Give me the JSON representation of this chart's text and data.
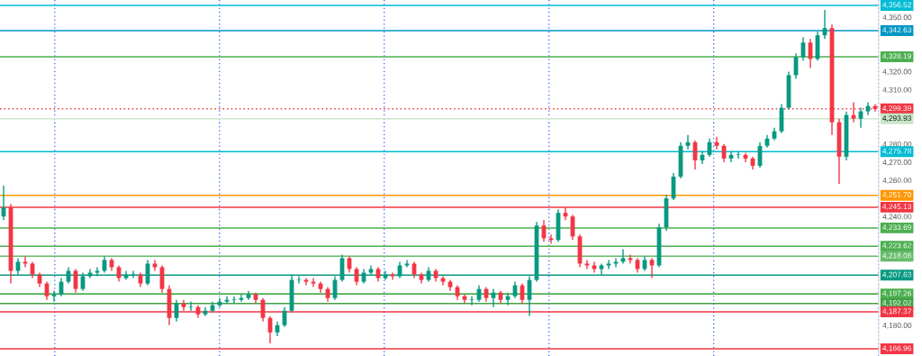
{
  "chart_data": {
    "type": "candlestick",
    "categories": [
      null,
      null,
      null,
      null,
      null,
      null,
      null,
      null,
      null,
      null,
      null,
      null,
      null,
      null,
      null,
      null,
      null,
      null,
      null,
      null,
      null,
      null,
      null,
      null,
      null,
      null,
      null,
      null,
      null,
      null,
      null,
      null,
      null,
      null,
      null,
      null,
      null,
      null,
      null,
      null,
      null,
      null,
      null,
      null,
      null,
      null,
      null,
      null,
      null,
      null,
      null,
      null,
      null,
      null,
      null,
      null,
      null,
      null,
      null,
      null,
      null,
      null,
      null,
      null,
      null,
      null,
      null,
      null,
      null,
      null,
      null,
      null,
      null,
      null,
      null,
      null,
      null,
      null,
      null,
      null,
      null,
      null,
      null,
      null,
      null,
      null,
      null,
      null,
      null,
      null,
      null,
      null,
      null,
      null,
      null,
      null,
      null,
      null,
      null,
      null,
      null,
      null,
      null,
      null,
      null,
      null,
      null,
      null,
      null,
      null,
      null,
      null,
      null,
      null,
      null,
      null,
      null,
      null,
      null,
      null,
      null,
      null
    ],
    "ohlc": [
      [
        4240,
        4257,
        4238,
        4245
      ],
      [
        4245,
        4247,
        4203,
        4210
      ],
      [
        4210,
        4217,
        4208,
        4215
      ],
      [
        4215,
        4218,
        4212,
        4214
      ],
      [
        4214,
        4215,
        4206,
        4208
      ],
      [
        4208,
        4209,
        4201,
        4203
      ],
      [
        4203,
        4204,
        4194,
        4196
      ],
      [
        4196,
        4199,
        4193,
        4197
      ],
      [
        4197,
        4206,
        4196,
        4204
      ],
      [
        4204,
        4212,
        4203,
        4210
      ],
      [
        4210,
        4211,
        4198,
        4200
      ],
      [
        4200,
        4209,
        4199,
        4207
      ],
      [
        4207,
        4211,
        4206,
        4209
      ],
      [
        4209,
        4212,
        4207,
        4210
      ],
      [
        4210,
        4218,
        4209,
        4216
      ],
      [
        4216,
        4217,
        4210,
        4212
      ],
      [
        4212,
        4213,
        4204,
        4206
      ],
      [
        4206,
        4210,
        4205,
        4208
      ],
      [
        4208,
        4210,
        4206,
        4208
      ],
      [
        4208,
        4209,
        4201,
        4203
      ],
      [
        4203,
        4216,
        4202,
        4214
      ],
      [
        4214,
        4216,
        4210,
        4212
      ],
      [
        4212,
        4213,
        4198,
        4200
      ],
      [
        4200,
        4202,
        4180,
        4184
      ],
      [
        4184,
        4194,
        4182,
        4192
      ],
      [
        4192,
        4194,
        4188,
        4190
      ],
      [
        4190,
        4193,
        4188,
        4190
      ],
      [
        4190,
        4191,
        4184,
        4186
      ],
      [
        4186,
        4190,
        4185,
        4188
      ],
      [
        4188,
        4193,
        4187,
        4191
      ],
      [
        4191,
        4195,
        4190,
        4193
      ],
      [
        4193,
        4196,
        4192,
        4194
      ],
      [
        4194,
        4196,
        4192,
        4194
      ],
      [
        4194,
        4197,
        4193,
        4195
      ],
      [
        4195,
        4199,
        4194,
        4197
      ],
      [
        4197,
        4198,
        4192,
        4194
      ],
      [
        4194,
        4195,
        4182,
        4184
      ],
      [
        4184,
        4185,
        4170,
        4176
      ],
      [
        4176,
        4182,
        4174,
        4180
      ],
      [
        4180,
        4190,
        4179,
        4188
      ],
      [
        4188,
        4208,
        4187,
        4205
      ],
      [
        4205,
        4207,
        4203,
        4205
      ],
      [
        4205,
        4206,
        4202,
        4204
      ],
      [
        4204,
        4206,
        4201,
        4203
      ],
      [
        4203,
        4204,
        4198,
        4200
      ],
      [
        4200,
        4201,
        4193,
        4195
      ],
      [
        4195,
        4207,
        4194,
        4205
      ],
      [
        4205,
        4219,
        4204,
        4217
      ],
      [
        4217,
        4218,
        4209,
        4211
      ],
      [
        4211,
        4212,
        4202,
        4204
      ],
      [
        4204,
        4211,
        4203,
        4209
      ],
      [
        4209,
        4213,
        4208,
        4211
      ],
      [
        4211,
        4212,
        4204,
        4206
      ],
      [
        4206,
        4210,
        4205,
        4208
      ],
      [
        4208,
        4209,
        4205,
        4207
      ],
      [
        4207,
        4215,
        4206,
        4213
      ],
      [
        4213,
        4216,
        4212,
        4214
      ],
      [
        4214,
        4215,
        4206,
        4208
      ],
      [
        4208,
        4209,
        4203,
        4205
      ],
      [
        4205,
        4212,
        4204,
        4210
      ],
      [
        4210,
        4211,
        4204,
        4206
      ],
      [
        4206,
        4207,
        4202,
        4204
      ],
      [
        4204,
        4205,
        4199,
        4201
      ],
      [
        4201,
        4202,
        4194,
        4196
      ],
      [
        4196,
        4197,
        4192,
        4194
      ],
      [
        4194,
        4196,
        4191,
        4194
      ],
      [
        4194,
        4202,
        4193,
        4200
      ],
      [
        4200,
        4201,
        4193,
        4195
      ],
      [
        4195,
        4200,
        4190,
        4198
      ],
      [
        4198,
        4199,
        4192,
        4194
      ],
      [
        4194,
        4198,
        4191,
        4196
      ],
      [
        4196,
        4204,
        4195,
        4202
      ],
      [
        4202,
        4203,
        4192,
        4194
      ],
      [
        4194,
        4207,
        4185,
        4205
      ],
      [
        4205,
        4237,
        4204,
        4235
      ],
      [
        4235,
        4238,
        4226,
        4228
      ],
      [
        4228,
        4230,
        4225,
        4227
      ],
      [
        4227,
        4244,
        4226,
        4242
      ],
      [
        4242,
        4245,
        4238,
        4240
      ],
      [
        4240,
        4241,
        4227,
        4229
      ],
      [
        4229,
        4230,
        4212,
        4214
      ],
      [
        4214,
        4216,
        4211,
        4213
      ],
      [
        4213,
        4215,
        4209,
        4211
      ],
      [
        4211,
        4214,
        4208,
        4213
      ],
      [
        4213,
        4216,
        4211,
        4214
      ],
      [
        4214,
        4217,
        4212,
        4215
      ],
      [
        4215,
        4222,
        4214,
        4217
      ],
      [
        4217,
        4219,
        4214,
        4216
      ],
      [
        4216,
        4217,
        4209,
        4211
      ],
      [
        4211,
        4218,
        4210,
        4216
      ],
      [
        4216,
        4217,
        4206,
        4213
      ],
      [
        4213,
        4236,
        4212,
        4234
      ],
      [
        4234,
        4252,
        4232,
        4250
      ],
      [
        4250,
        4264,
        4249,
        4262
      ],
      [
        4262,
        4281,
        4261,
        4279
      ],
      [
        4279,
        4285,
        4277,
        4281
      ],
      [
        4281,
        4282,
        4266,
        4271
      ],
      [
        4271,
        4276,
        4269,
        4274
      ],
      [
        4274,
        4283,
        4273,
        4281
      ],
      [
        4281,
        4284,
        4277,
        4279
      ],
      [
        4279,
        4280,
        4270,
        4272
      ],
      [
        4272,
        4276,
        4270,
        4274
      ],
      [
        4274,
        4276,
        4272,
        4274
      ],
      [
        4274,
        4275,
        4270,
        4272
      ],
      [
        4272,
        4273,
        4266,
        4268
      ],
      [
        4268,
        4281,
        4267,
        4279
      ],
      [
        4279,
        4285,
        4278,
        4283
      ],
      [
        4283,
        4289,
        4282,
        4287
      ],
      [
        4287,
        4302,
        4286,
        4300
      ],
      [
        4300,
        4320,
        4299,
        4318
      ],
      [
        4318,
        4330,
        4316,
        4328
      ],
      [
        4328,
        4339,
        4326,
        4336
      ],
      [
        4336,
        4338,
        4322,
        4327
      ],
      [
        4327,
        4342,
        4326,
        4340
      ],
      [
        4340,
        4354,
        4338,
        4344
      ],
      [
        4344,
        4346,
        4285,
        4292
      ],
      [
        4292,
        4294,
        4258,
        4273
      ],
      [
        4273,
        4298,
        4271,
        4296
      ],
      [
        4296,
        4303,
        4292,
        4294
      ],
      [
        4294,
        4300,
        4289,
        4298
      ],
      [
        4298,
        4303,
        4296,
        4301
      ],
      [
        4301,
        4302,
        4298,
        4299.39
      ]
    ],
    "ylim": [
      4163,
      4359.5
    ],
    "yticks": [
      {
        "value": 4180,
        "label": "4,180.00"
      },
      {
        "value": 4240,
        "label": "4,240.00"
      },
      {
        "value": 4260,
        "label": "4,260.00"
      },
      {
        "value": 4270,
        "label": "4,270.00"
      },
      {
        "value": 4280,
        "label": "4,280.00"
      },
      {
        "value": 4310,
        "label": "4,310.00"
      },
      {
        "value": 4320,
        "label": "4,320.00"
      },
      {
        "value": 4350,
        "label": "4,350.00"
      }
    ],
    "tick_labels": "y",
    "ref_lines": [
      {
        "axis": "y",
        "value": 4356.52,
        "label": "4,356.52",
        "color": "#00bcd4"
      },
      {
        "axis": "y",
        "value": 4342.63,
        "label": "4,342.63",
        "color": "#0097c4"
      },
      {
        "axis": "y",
        "value": 4328.19,
        "label": "4,328.19",
        "color": "#4caf50"
      },
      {
        "axis": "y",
        "value": 4299.39,
        "label": "4,299.39",
        "color": "#f23645",
        "line_style": "dotted"
      },
      {
        "axis": "y",
        "value": 4293.93,
        "label": "4,293.93",
        "color": "#c8e6c9"
      },
      {
        "axis": "y",
        "value": 4275.78,
        "label": "4,275.78",
        "color": "#00bcd4"
      },
      {
        "axis": "y",
        "value": 4251.7,
        "label": "4,251.70",
        "color": "#ff9800"
      },
      {
        "axis": "y",
        "value": 4245.13,
        "label": "4,245.13",
        "color": "#f23645"
      },
      {
        "axis": "y",
        "value": 4233.69,
        "label": "4,233.69",
        "color": "#4caf50"
      },
      {
        "axis": "y",
        "value": 4223.62,
        "label": "4,223.62",
        "color": "#4caf50"
      },
      {
        "axis": "y",
        "value": 4218.08,
        "label": "4,218.08",
        "color": "#66bb6a"
      },
      {
        "axis": "y",
        "value": 4207.63,
        "label": "4,207.63",
        "color": "#089981"
      },
      {
        "axis": "y",
        "value": 4197.26,
        "label": "4,197.26",
        "color": "#4caf50"
      },
      {
        "axis": "y",
        "value": 4192.02,
        "label": "4,192.02",
        "color": "#43a047"
      },
      {
        "axis": "y",
        "value": 4187.37,
        "label": "4,187.37",
        "color": "#f23645"
      },
      {
        "axis": "y",
        "value": 4166.96,
        "label": "4,166.96",
        "color": "#f23645"
      }
    ]
  }
}
